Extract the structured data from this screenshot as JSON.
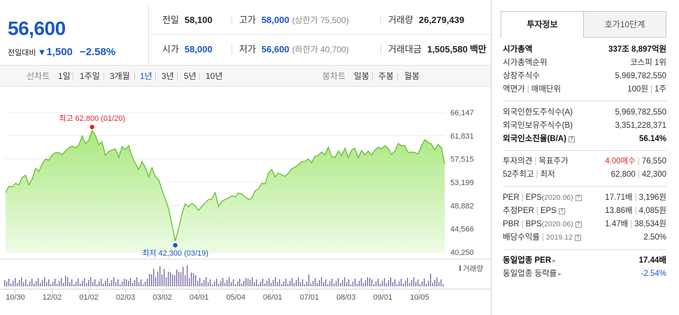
{
  "summary": {
    "price": "56,600",
    "change_label": "전일대비",
    "change_arrow": "▼",
    "change_value": "1,500",
    "change_pct": "−2.58%"
  },
  "quote": {
    "prev_close_label": "전일",
    "prev_close": "58,100",
    "high_label": "고가",
    "high": "58,000",
    "upper_limit": "(상한가 75,500)",
    "volume_label": "거래량",
    "volume": "26,279,439",
    "open_label": "시가",
    "open": "58,000",
    "low_label": "저가",
    "low": "56,600",
    "lower_limit": "(하한가 40,700)",
    "amount_label": "거래대금",
    "amount": "1,505,580",
    "amount_unit": "백만"
  },
  "period_bar": {
    "line_label": "선차트",
    "line_options": [
      "1일",
      "1주일",
      "3개월",
      "1년",
      "3년",
      "5년",
      "10년"
    ],
    "active": "1년",
    "candle_label": "봉차트",
    "candle_options": [
      "일봉",
      "주봉",
      "월봉"
    ]
  },
  "colors": {
    "accent_blue": "#1a56c8",
    "red": "#e0272f",
    "line_green": "#5fc128",
    "volume_purple": "#7a6aa8"
  },
  "chart_data": {
    "type": "area",
    "ylim": [
      40250,
      66147
    ],
    "y_ticks": [
      "66,147",
      "61,831",
      "57,515",
      "53,199",
      "48,882",
      "44,566",
      "40,250"
    ],
    "x_labels": [
      "10/30",
      "12/02",
      "01/02",
      "02/03",
      "03/02",
      "04/01",
      "05/04",
      "06/01",
      "07/01",
      "08/03",
      "09/01",
      "10/05"
    ],
    "max_label": "최고 62,800 (01/20)",
    "min_label": "최저 42,300 (03/19)",
    "volume_label": "거래량",
    "values": [
      51300,
      52500,
      52300,
      53000,
      52700,
      54100,
      54500,
      52700,
      53800,
      55800,
      55200,
      56600,
      57500,
      57300,
      58300,
      58700,
      58700,
      58300,
      59000,
      59600,
      59900,
      59600,
      60100,
      61800,
      60400,
      61000,
      62800,
      61900,
      60200,
      60700,
      58200,
      58900,
      59200,
      59400,
      57800,
      59800,
      59300,
      60000,
      58000,
      56700,
      55600,
      57000,
      56000,
      54200,
      55900,
      54300,
      53700,
      51800,
      50100,
      48300,
      45400,
      42300,
      44600,
      47300,
      49200,
      48600,
      49300,
      48800,
      48000,
      48700,
      49400,
      50000,
      50100,
      51300,
      48700,
      49700,
      50000,
      50300,
      50700,
      50500,
      51200,
      51000,
      50500,
      50000,
      50300,
      51600,
      52000,
      53000,
      52900,
      54900,
      55600,
      54200,
      54900,
      54600,
      54300,
      54900,
      55700,
      56000,
      56500,
      57000,
      57100,
      57500,
      56800,
      58000,
      58200,
      58800,
      58300,
      59700,
      58000,
      57800,
      59000,
      58100,
      59500,
      57800,
      59200,
      59500,
      57700,
      59100,
      58300,
      59000,
      58200,
      59200,
      59700,
      59400,
      60000,
      59500,
      58400,
      58900,
      60400,
      60000,
      60000,
      58700,
      58800,
      58700,
      58500,
      60000,
      61100,
      60600,
      60300,
      59200,
      60200,
      59600,
      56600
    ]
  },
  "side": {
    "tab_info": "투자정보",
    "tab_order": "호가10단계",
    "market_cap_label": "시가총액",
    "market_cap": "337조 8,897억원",
    "market_cap_rank_label": "시가총액순위",
    "market_cap_rank": "코스피 1위",
    "shares_label": "상장주식수",
    "shares": "5,969,782,550",
    "par_label": "액면가",
    "unit_label": "매매단위",
    "par": "100원",
    "unit": "1주",
    "foreign_limit_label": "외국인한도주식수(A)",
    "foreign_limit": "5,969,782,550",
    "foreign_hold_label": "외국인보유주식수(B)",
    "foreign_hold": "3,351,228,371",
    "foreign_rate_label": "외국인소진율(B/A)",
    "foreign_rate": "56.14%",
    "opinion_label": "투자의견",
    "target_label": "목표주가",
    "opinion": "4.00매수",
    "target": "76,550",
    "w52_high_label": "52주최고",
    "w52_low_label": "최저",
    "w52_high": "62,800",
    "w52_low": "42,300",
    "per_label": "PER",
    "eps_label": "EPS",
    "eps_period": "(2020.06)",
    "per": "17.71배",
    "eps": "3,196원",
    "est_per_label": "추정PER",
    "est_eps_label": "EPS",
    "est_per": "13.86배",
    "est_eps": "4,085원",
    "pbr_label": "PBR",
    "bps_label": "BPS",
    "bps_period": "(2020.06)",
    "pbr": "1.47배",
    "bps": "38,534원",
    "div_label": "배당수익률",
    "div_period": "2019.12",
    "div": "2.50%",
    "ind_per_label": "동일업종 PER",
    "ind_per": "17.44배",
    "ind_rate_label": "동일업종 등락률",
    "ind_rate": "-2.54%"
  }
}
